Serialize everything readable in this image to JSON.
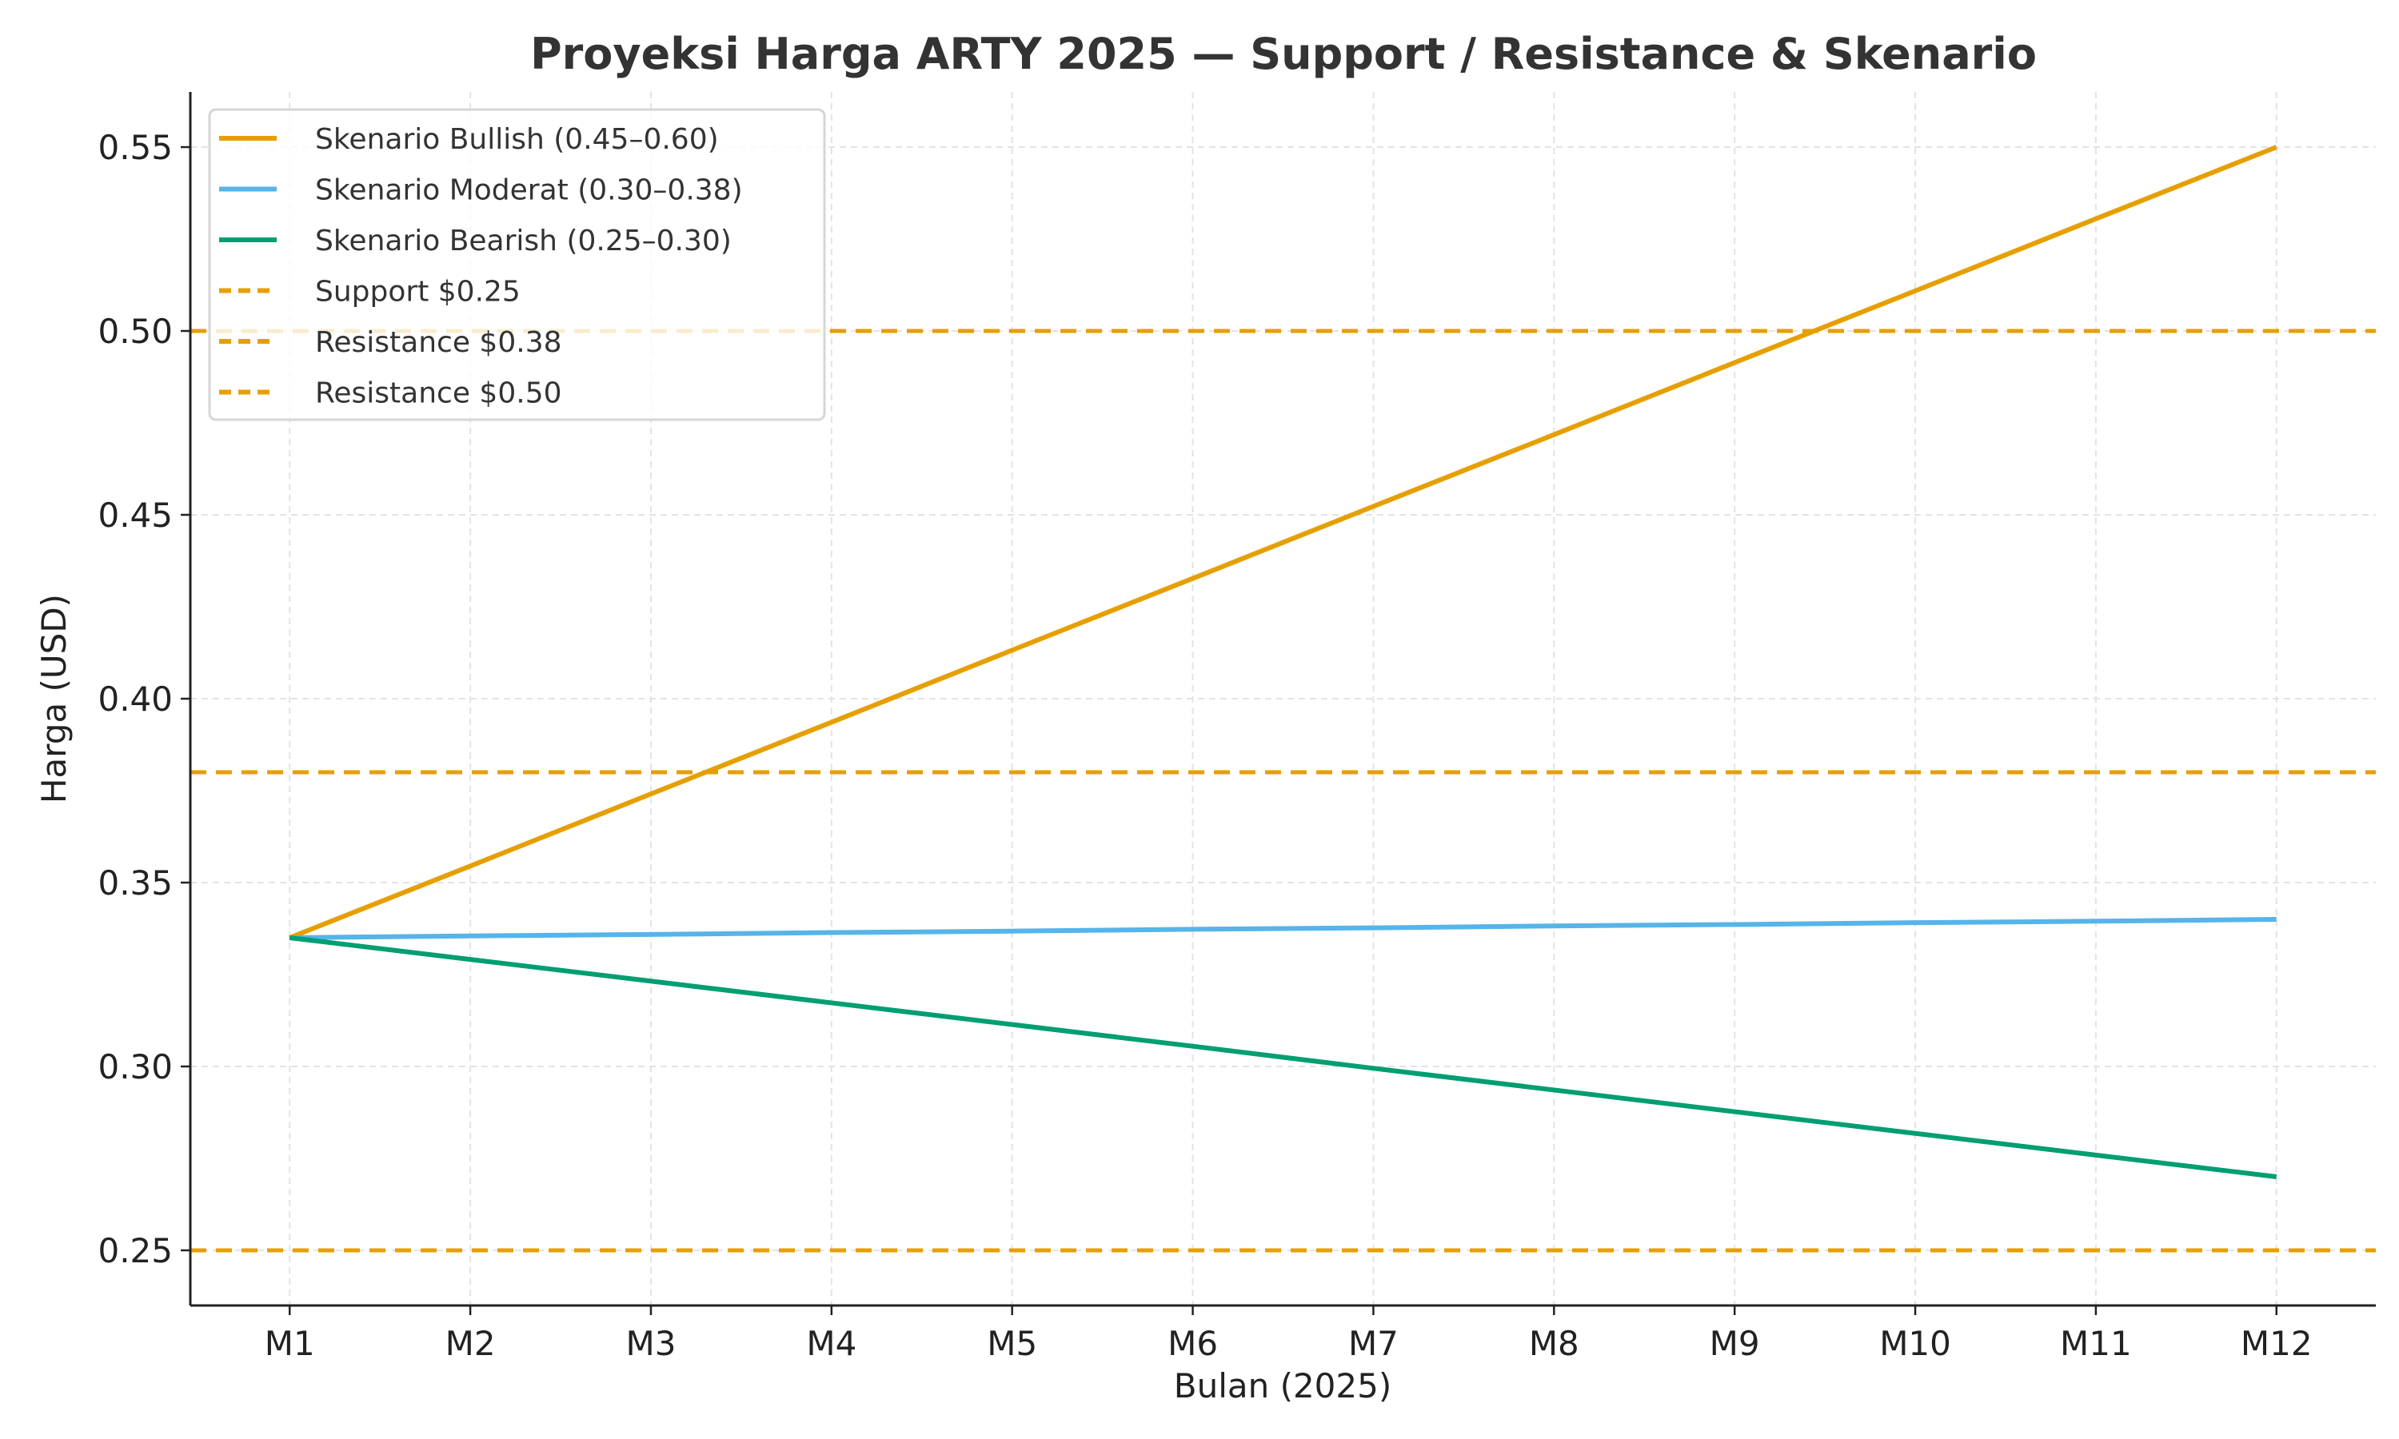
{
  "chart_data": {
    "type": "line",
    "title": "Proyeksi Harga ARTY 2025 — Support / Resistance & Skenario",
    "xlabel": "Bulan (2025)",
    "ylabel": "Harga (USD)",
    "categories": [
      "M1",
      "M2",
      "M3",
      "M4",
      "M5",
      "M6",
      "M7",
      "M8",
      "M9",
      "M10",
      "M11",
      "M12"
    ],
    "ylim": [
      0.235,
      0.565
    ],
    "yticks": [
      "0.25",
      "0.30",
      "0.35",
      "0.40",
      "0.45",
      "0.50",
      "0.55"
    ],
    "grid": true,
    "legend_position": "top-left",
    "series": [
      {
        "name": "Skenario Bullish (0.45–0.60)",
        "color": "#E69F00",
        "style": "solid",
        "values": [
          0.335,
          0.3545,
          0.3741,
          0.3936,
          0.4132,
          0.4327,
          0.4523,
          0.4718,
          0.4914,
          0.5109,
          0.5305,
          0.55
        ]
      },
      {
        "name": "Skenario Moderat (0.30–0.38)",
        "color": "#56B4E9",
        "style": "solid",
        "values": [
          0.335,
          0.3355,
          0.3359,
          0.3364,
          0.3368,
          0.3373,
          0.3377,
          0.3382,
          0.3386,
          0.3391,
          0.3395,
          0.34
        ]
      },
      {
        "name": "Skenario Bearish (0.25–0.30)",
        "color": "#009E73",
        "style": "solid",
        "values": [
          0.335,
          0.3291,
          0.3232,
          0.3173,
          0.3114,
          0.3055,
          0.2995,
          0.2936,
          0.2877,
          0.2818,
          0.2759,
          0.27
        ]
      }
    ],
    "hlines": [
      {
        "name": "Support $0.25",
        "value": 0.25,
        "color": "#E69F00",
        "style": "dashed"
      },
      {
        "name": "Resistance $0.38",
        "value": 0.38,
        "color": "#E69F00",
        "style": "dashed"
      },
      {
        "name": "Resistance $0.50",
        "value": 0.5,
        "color": "#E69F00",
        "style": "dashed"
      }
    ]
  }
}
